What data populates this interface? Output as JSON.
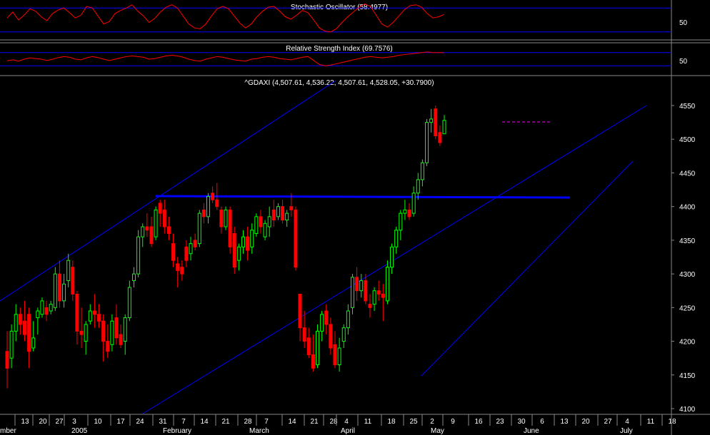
{
  "panels": {
    "stochastic": {
      "title": "Stochastic Oscillator (58.4977)",
      "tick": "50"
    },
    "rsi": {
      "title": "Relative Strength Index (69.7576)",
      "tick": "50"
    },
    "price": {
      "title": "^GDAXI (4,507.61, 4,536.22, 4,507.61, 4,528.05, +30.7900)"
    }
  },
  "colors": {
    "background": "#000000",
    "up_candle": "#00ff00",
    "down_candle": "#ff0000",
    "indicator_line": "#ff0000",
    "trend_line": "#0000ff",
    "grid_band": "#0000cc",
    "resistance_marker": "#ff00ff",
    "text": "#ffffff"
  },
  "chart_data": [
    {
      "type": "line",
      "title": "Stochastic Oscillator (58.4977)",
      "ylim": [
        0,
        100
      ],
      "ytick_labels": [
        "50"
      ],
      "bands": [
        80,
        20
      ],
      "series": [
        {
          "values": [
            55,
            70,
            50,
            62,
            78,
            72,
            58,
            48,
            66,
            75,
            80,
            68,
            55,
            62,
            84,
            80,
            60,
            40,
            46,
            66,
            74,
            80,
            88,
            72,
            60,
            44,
            54,
            70,
            82,
            88,
            80,
            60,
            40,
            30,
            28,
            40,
            60,
            78,
            84,
            78,
            60,
            42,
            30,
            40,
            58,
            72,
            82,
            84,
            72,
            58,
            52,
            62,
            74,
            68,
            50,
            30,
            22,
            20,
            28,
            44,
            58,
            70,
            82,
            90,
            84,
            62,
            40,
            32,
            44,
            60,
            76,
            86,
            88,
            82,
            66,
            55,
            58,
            64
          ]
        }
      ]
    },
    {
      "type": "line",
      "title": "Relative Strength Index (69.7576)",
      "ylim": [
        0,
        100
      ],
      "ytick_labels": [
        "50"
      ],
      "bands": [
        70,
        30
      ],
      "series": [
        {
          "values": [
            45,
            48,
            44,
            50,
            54,
            52,
            50,
            46,
            50,
            55,
            58,
            56,
            50,
            48,
            54,
            58,
            55,
            50,
            46,
            50,
            54,
            58,
            60,
            58,
            56,
            50,
            52,
            56,
            60,
            62,
            60,
            56,
            50,
            46,
            44,
            50,
            54,
            58,
            56,
            52,
            48,
            46,
            44,
            50,
            52,
            56,
            58,
            56,
            52,
            50,
            48,
            52,
            56,
            58,
            46,
            34,
            30,
            32,
            36,
            40,
            44,
            48,
            52,
            56,
            58,
            56,
            54,
            56,
            58,
            62,
            64,
            66,
            68,
            70,
            72,
            70,
            70,
            70
          ]
        }
      ]
    },
    {
      "type": "candlestick",
      "title": "^GDAXI (4,507.61, 4,536.22, 4,507.61, 4,528.05, +30.7900)",
      "ylim": [
        4100,
        4550
      ],
      "ytick_labels": [
        "4550",
        "4500",
        "4450",
        "4400",
        "4350",
        "4300",
        "4250",
        "4200",
        "4150",
        "4100"
      ],
      "x_tick_labels": [
        "13",
        "20",
        "27",
        "3",
        "10",
        "17",
        "24",
        "31",
        "7",
        "14",
        "21",
        "28",
        "7",
        "14",
        "21",
        "28",
        "4",
        "11",
        "18",
        "25",
        "2",
        "9",
        "16",
        "23",
        "30",
        "6",
        "13",
        "20",
        "27",
        "4",
        "11",
        "18"
      ],
      "month_labels": [
        "mber",
        "2005",
        "February",
        "March",
        "April",
        "May",
        "June",
        "July"
      ],
      "grid": false,
      "candles": [
        {
          "o": 4185,
          "h": 4215,
          "l": 4130,
          "c": 4160
        },
        {
          "o": 4175,
          "h": 4225,
          "l": 4160,
          "c": 4215
        },
        {
          "o": 4215,
          "h": 4255,
          "l": 4200,
          "c": 4240
        },
        {
          "o": 4240,
          "h": 4250,
          "l": 4210,
          "c": 4225
        },
        {
          "o": 4230,
          "h": 4260,
          "l": 4200,
          "c": 4210
        },
        {
          "o": 4240,
          "h": 4250,
          "l": 4160,
          "c": 4185
        },
        {
          "o": 4190,
          "h": 4230,
          "l": 4185,
          "c": 4205
        },
        {
          "o": 4235,
          "h": 4250,
          "l": 4210,
          "c": 4245
        },
        {
          "o": 4240,
          "h": 4265,
          "l": 4235,
          "c": 4260
        },
        {
          "o": 4250,
          "h": 4260,
          "l": 4230,
          "c": 4240
        },
        {
          "o": 4245,
          "h": 4260,
          "l": 4240,
          "c": 4255
        },
        {
          "o": 4250,
          "h": 4310,
          "l": 4245,
          "c": 4300
        },
        {
          "o": 4300,
          "h": 4320,
          "l": 4250,
          "c": 4260
        },
        {
          "o": 4260,
          "h": 4300,
          "l": 4250,
          "c": 4285
        },
        {
          "o": 4290,
          "h": 4330,
          "l": 4280,
          "c": 4320
        },
        {
          "o": 4310,
          "h": 4320,
          "l": 4260,
          "c": 4270
        },
        {
          "o": 4270,
          "h": 4275,
          "l": 4195,
          "c": 4215
        },
        {
          "o": 4215,
          "h": 4250,
          "l": 4190,
          "c": 4210
        },
        {
          "o": 4200,
          "h": 4230,
          "l": 4180,
          "c": 4225
        },
        {
          "o": 4230,
          "h": 4255,
          "l": 4225,
          "c": 4245
        },
        {
          "o": 4245,
          "h": 4270,
          "l": 4220,
          "c": 4240
        },
        {
          "o": 4240,
          "h": 4255,
          "l": 4220,
          "c": 4230
        },
        {
          "o": 4230,
          "h": 4240,
          "l": 4170,
          "c": 4200
        },
        {
          "o": 4200,
          "h": 4225,
          "l": 4175,
          "c": 4185
        },
        {
          "o": 4195,
          "h": 4240,
          "l": 4185,
          "c": 4230
        },
        {
          "o": 4235,
          "h": 4255,
          "l": 4195,
          "c": 4205
        },
        {
          "o": 4210,
          "h": 4225,
          "l": 4190,
          "c": 4195
        },
        {
          "o": 4200,
          "h": 4240,
          "l": 4180,
          "c": 4235
        },
        {
          "o": 4235,
          "h": 4290,
          "l": 4230,
          "c": 4280
        },
        {
          "o": 4290,
          "h": 4310,
          "l": 4280,
          "c": 4300
        },
        {
          "o": 4300,
          "h": 4365,
          "l": 4295,
          "c": 4355
        },
        {
          "o": 4355,
          "h": 4375,
          "l": 4340,
          "c": 4370
        },
        {
          "o": 4370,
          "h": 4390,
          "l": 4355,
          "c": 4365
        },
        {
          "o": 4370,
          "h": 4385,
          "l": 4340,
          "c": 4345
        },
        {
          "o": 4355,
          "h": 4400,
          "l": 4350,
          "c": 4395
        },
        {
          "o": 4405,
          "h": 4410,
          "l": 4370,
          "c": 4390
        },
        {
          "o": 4395,
          "h": 4410,
          "l": 4360,
          "c": 4370
        },
        {
          "o": 4370,
          "h": 4385,
          "l": 4350,
          "c": 4360
        },
        {
          "o": 4345,
          "h": 4360,
          "l": 4310,
          "c": 4320
        },
        {
          "o": 4315,
          "h": 4325,
          "l": 4280,
          "c": 4305
        },
        {
          "o": 4310,
          "h": 4320,
          "l": 4290,
          "c": 4300
        },
        {
          "o": 4340,
          "h": 4350,
          "l": 4310,
          "c": 4320
        },
        {
          "o": 4330,
          "h": 4355,
          "l": 4320,
          "c": 4345
        },
        {
          "o": 4350,
          "h": 4360,
          "l": 4335,
          "c": 4340
        },
        {
          "o": 4345,
          "h": 4395,
          "l": 4340,
          "c": 4390
        },
        {
          "o": 4395,
          "h": 4405,
          "l": 4375,
          "c": 4385
        },
        {
          "o": 4385,
          "h": 4420,
          "l": 4375,
          "c": 4415
        },
        {
          "o": 4420,
          "h": 4430,
          "l": 4405,
          "c": 4410
        },
        {
          "o": 4410,
          "h": 4435,
          "l": 4395,
          "c": 4400
        },
        {
          "o": 4395,
          "h": 4400,
          "l": 4360,
          "c": 4370
        },
        {
          "o": 4370,
          "h": 4400,
          "l": 4365,
          "c": 4395
        },
        {
          "o": 4395,
          "h": 4400,
          "l": 4330,
          "c": 4340
        },
        {
          "o": 4360,
          "h": 4370,
          "l": 4300,
          "c": 4310
        },
        {
          "o": 4320,
          "h": 4345,
          "l": 4305,
          "c": 4340
        },
        {
          "o": 4340,
          "h": 4365,
          "l": 4330,
          "c": 4355
        },
        {
          "o": 4355,
          "h": 4370,
          "l": 4320,
          "c": 4335
        },
        {
          "o": 4340,
          "h": 4375,
          "l": 4330,
          "c": 4365
        },
        {
          "o": 4360,
          "h": 4390,
          "l": 4355,
          "c": 4385
        },
        {
          "o": 4385,
          "h": 4395,
          "l": 4360,
          "c": 4370
        },
        {
          "o": 4355,
          "h": 4380,
          "l": 4350,
          "c": 4375
        },
        {
          "o": 4370,
          "h": 4400,
          "l": 4355,
          "c": 4385
        },
        {
          "o": 4395,
          "h": 4410,
          "l": 4370,
          "c": 4380
        },
        {
          "o": 4385,
          "h": 4405,
          "l": 4380,
          "c": 4400
        },
        {
          "o": 4400,
          "h": 4410,
          "l": 4375,
          "c": 4380
        },
        {
          "o": 4380,
          "h": 4395,
          "l": 4370,
          "c": 4390
        },
        {
          "o": 4400,
          "h": 4420,
          "l": 4385,
          "c": 4395
        },
        {
          "o": 4395,
          "h": 4400,
          "l": 4305,
          "c": 4310
        },
        {
          "o": 4270,
          "h": 4270,
          "l": 4200,
          "c": 4220
        },
        {
          "o": 4220,
          "h": 4245,
          "l": 4190,
          "c": 4200
        },
        {
          "o": 4205,
          "h": 4220,
          "l": 4175,
          "c": 4180
        },
        {
          "o": 4180,
          "h": 4210,
          "l": 4155,
          "c": 4160
        },
        {
          "o": 4165,
          "h": 4225,
          "l": 4160,
          "c": 4215
        },
        {
          "o": 4215,
          "h": 4245,
          "l": 4200,
          "c": 4240
        },
        {
          "o": 4245,
          "h": 4255,
          "l": 4210,
          "c": 4225
        },
        {
          "o": 4225,
          "h": 4235,
          "l": 4180,
          "c": 4190
        },
        {
          "o": 4195,
          "h": 4215,
          "l": 4160,
          "c": 4165
        },
        {
          "o": 4165,
          "h": 4205,
          "l": 4155,
          "c": 4190
        },
        {
          "o": 4200,
          "h": 4225,
          "l": 4190,
          "c": 4220
        },
        {
          "o": 4220,
          "h": 4255,
          "l": 4210,
          "c": 4245
        },
        {
          "o": 4250,
          "h": 4300,
          "l": 4240,
          "c": 4295
        },
        {
          "o": 4295,
          "h": 4310,
          "l": 4260,
          "c": 4275
        },
        {
          "o": 4275,
          "h": 4300,
          "l": 4265,
          "c": 4290
        },
        {
          "o": 4290,
          "h": 4300,
          "l": 4255,
          "c": 4260
        },
        {
          "o": 4255,
          "h": 4270,
          "l": 4235,
          "c": 4250
        },
        {
          "o": 4255,
          "h": 4280,
          "l": 4245,
          "c": 4275
        },
        {
          "o": 4275,
          "h": 4290,
          "l": 4260,
          "c": 4270
        },
        {
          "o": 4270,
          "h": 4285,
          "l": 4230,
          "c": 4265
        },
        {
          "o": 4260,
          "h": 4320,
          "l": 4255,
          "c": 4310
        },
        {
          "o": 4310,
          "h": 4345,
          "l": 4300,
          "c": 4340
        },
        {
          "o": 4340,
          "h": 4370,
          "l": 4330,
          "c": 4365
        },
        {
          "o": 4365,
          "h": 4395,
          "l": 4350,
          "c": 4390
        },
        {
          "o": 4390,
          "h": 4410,
          "l": 4380,
          "c": 4395
        },
        {
          "o": 4395,
          "h": 4405,
          "l": 4380,
          "c": 4385
        },
        {
          "o": 4390,
          "h": 4430,
          "l": 4385,
          "c": 4420
        },
        {
          "o": 4420,
          "h": 4450,
          "l": 4410,
          "c": 4440
        },
        {
          "o": 4440,
          "h": 4470,
          "l": 4430,
          "c": 4465
        },
        {
          "o": 4465,
          "h": 4530,
          "l": 4460,
          "c": 4525
        },
        {
          "o": 4525,
          "h": 4545,
          "l": 4510,
          "c": 4530
        },
        {
          "o": 4545,
          "h": 4550,
          "l": 4500,
          "c": 4505
        },
        {
          "o": 4510,
          "h": 4520,
          "l": 4490,
          "c": 4495
        },
        {
          "o": 4508,
          "h": 4536,
          "l": 4508,
          "c": 4528
        }
      ]
    }
  ]
}
